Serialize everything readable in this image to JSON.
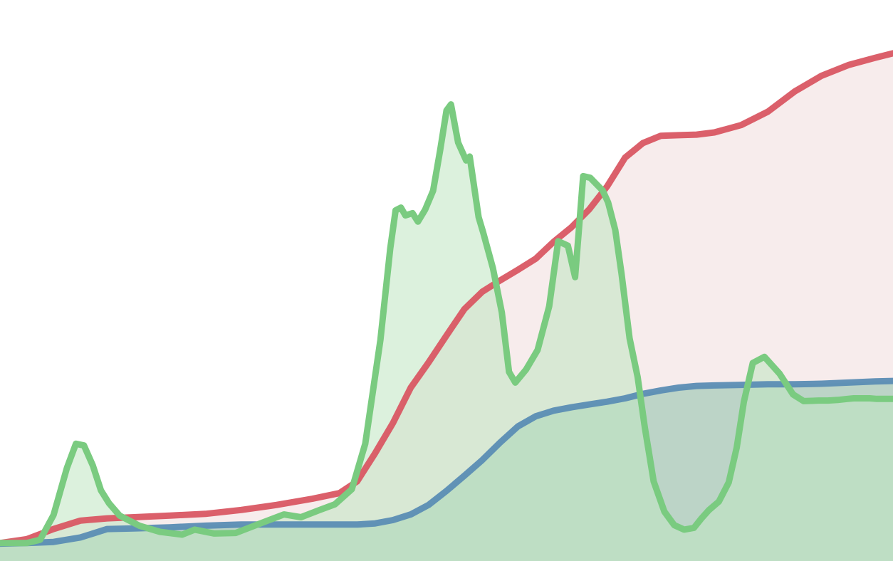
{
  "chart_data": {
    "type": "area",
    "grid": false,
    "legend": "none",
    "xlim": [
      0,
      100
    ],
    "ylim": [
      0,
      100
    ],
    "series": [
      {
        "key": "red",
        "color": "#d95763",
        "fill": "#f7ecec",
        "fill_opacity": 1.0,
        "x": [
          0,
          3,
          6,
          9,
          12,
          15,
          19,
          23,
          27,
          31,
          35,
          38,
          40,
          42,
          44,
          46,
          48,
          50,
          52,
          54,
          56,
          58,
          60,
          62,
          64,
          66,
          68,
          70,
          72,
          74,
          76,
          78,
          80,
          83,
          86,
          89,
          92,
          95,
          98,
          100
        ],
        "y": [
          3.2,
          3.9,
          5.7,
          7.2,
          7.6,
          7.8,
          8.1,
          8.4,
          9.1,
          10.0,
          11.1,
          12.1,
          14.2,
          19.2,
          24.6,
          30.9,
          35.4,
          40.2,
          44.9,
          48.0,
          50.0,
          51.9,
          53.9,
          56.9,
          59.5,
          62.7,
          66.8,
          71.9,
          74.5,
          75.8,
          75.9,
          76.0,
          76.4,
          77.7,
          80.1,
          83.7,
          86.5,
          88.4,
          89.7,
          90.5
        ]
      },
      {
        "key": "blue",
        "color": "#5b8db4",
        "fill": "#bcd4c7",
        "fill_opacity": 1.0,
        "x": [
          0,
          3,
          6,
          9,
          12,
          15,
          19,
          23,
          27,
          31,
          35,
          38,
          40,
          42,
          44,
          46,
          48,
          50,
          52,
          54,
          56,
          58,
          60,
          62,
          64,
          66,
          68,
          70,
          72,
          74,
          76,
          78,
          80,
          83,
          86,
          89,
          92,
          95,
          98,
          100
        ],
        "y": [
          3.1,
          3.2,
          3.4,
          4.2,
          5.7,
          5.8,
          6.0,
          6.3,
          6.5,
          6.5,
          6.5,
          6.5,
          6.5,
          6.7,
          7.3,
          8.3,
          10.0,
          12.5,
          15.2,
          18.0,
          21.1,
          24.0,
          25.8,
          26.8,
          27.4,
          27.9,
          28.4,
          29.0,
          29.8,
          30.4,
          30.9,
          31.2,
          31.3,
          31.4,
          31.5,
          31.5,
          31.6,
          31.8,
          32.0,
          32.1
        ]
      },
      {
        "key": "green",
        "color": "#7acb80",
        "fill": "#bfe6c1",
        "fill_opacity": 0.55,
        "x": [
          0,
          3,
          4.5,
          6,
          7.5,
          8.5,
          9.4,
          10.4,
          11.3,
          12.2,
          13.4,
          15.6,
          17.9,
          20.4,
          21.8,
          24,
          26.4,
          29.5,
          31.8,
          33.7,
          35.8,
          37.5,
          39.4,
          40.9,
          42.6,
          43.7,
          44.3,
          44.9,
          45.4,
          46.2,
          46.8,
          47.6,
          48.5,
          49.3,
          50,
          50.5,
          51.3,
          52.2,
          52.6,
          53.6,
          54.1,
          55.2,
          56.2,
          57,
          57.7,
          58.9,
          60.2,
          61.5,
          62.5,
          63.6,
          64.4,
          65.3,
          66.1,
          67.5,
          68.1,
          68.9,
          69.6,
          70.5,
          71.4,
          72.2,
          73.2,
          74.4,
          75.5,
          76.6,
          77.7,
          78.5,
          79.4,
          80.5,
          81.6,
          82.5,
          83.3,
          84.3,
          85.6,
          87.3,
          88.8,
          90,
          91.7,
          92.7,
          93.8,
          94.9,
          95.6,
          96,
          96.6,
          97.4,
          98.2,
          99,
          100
        ],
        "y": [
          3.2,
          3.2,
          3.8,
          8.2,
          16.6,
          20.9,
          20.6,
          17.0,
          12.6,
          10.3,
          8.1,
          6.3,
          5.2,
          4.7,
          5.6,
          4.9,
          5.0,
          6.9,
          8.3,
          7.8,
          9.1,
          10.1,
          12.8,
          20.9,
          39.4,
          55.7,
          62.5,
          63.0,
          61.6,
          62.0,
          60.5,
          62.6,
          66.0,
          73.3,
          80.3,
          81.4,
          74.6,
          71.4,
          72.1,
          61.3,
          58.6,
          52.2,
          44.3,
          33.7,
          31.8,
          34.1,
          37.6,
          45.4,
          57.0,
          56.2,
          50.6,
          68.6,
          68.3,
          66.0,
          63.9,
          59.0,
          51.2,
          39.7,
          32.8,
          23.9,
          14.2,
          8.8,
          6.4,
          5.6,
          5.9,
          7.5,
          9.1,
          10.6,
          14.0,
          20.2,
          28.4,
          35.3,
          36.4,
          33.4,
          29.7,
          28.5,
          28.6,
          28.6,
          28.7,
          28.9,
          29.0,
          29.0,
          29.0,
          29.0,
          28.9,
          28.9,
          28.9
        ]
      }
    ]
  }
}
